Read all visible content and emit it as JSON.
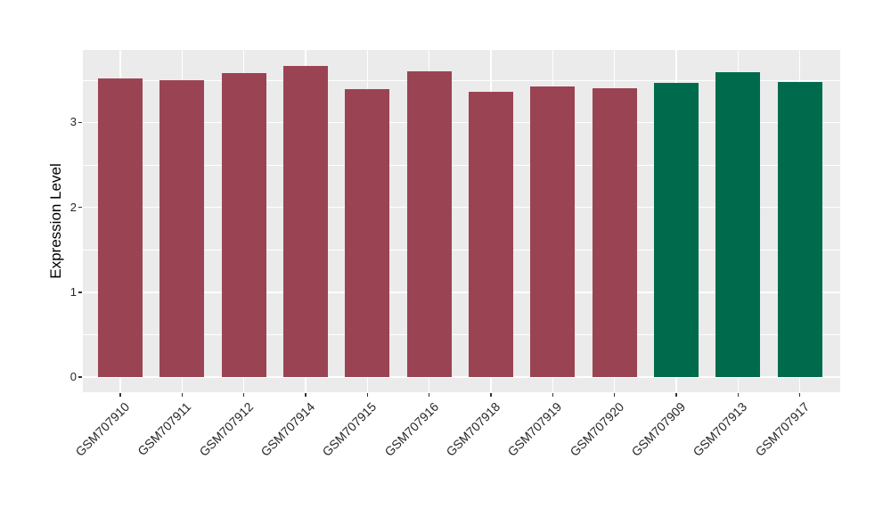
{
  "figure": {
    "background": "#FFFFFF",
    "panel_background": "#EBEBEB",
    "gridline_color": "#FFFFFF",
    "tick_color": "#333333",
    "axis_text_color": "#262626",
    "axis_title_color": "#000000"
  },
  "chart_data": {
    "type": "bar",
    "title": "",
    "xlabel": "",
    "ylabel": "Expression Level",
    "categories": [
      "GSM707910",
      "GSM707911",
      "GSM707912",
      "GSM707914",
      "GSM707915",
      "GSM707916",
      "GSM707918",
      "GSM707919",
      "GSM707920",
      "GSM707909",
      "GSM707913",
      "GSM707917"
    ],
    "values": [
      3.52,
      3.5,
      3.58,
      3.67,
      3.39,
      3.6,
      3.36,
      3.42,
      3.4,
      3.47,
      3.59,
      3.48
    ],
    "bar_colors": [
      "#9A4453",
      "#9A4453",
      "#9A4453",
      "#9A4453",
      "#9A4453",
      "#9A4453",
      "#9A4453",
      "#9A4453",
      "#9A4453",
      "#006B4C",
      "#006B4C",
      "#006B4C"
    ],
    "color_groups": {
      "left_group_color": "#9A4453",
      "right_group_color": "#006B4C"
    },
    "ylim": [
      -0.18,
      3.86
    ],
    "yticks": [
      0,
      1,
      2,
      3
    ],
    "yticks_minor": [
      0.5,
      1.5,
      2.5,
      3.5
    ],
    "ytick_labels": [
      "0",
      "1",
      "2",
      "3"
    ],
    "x_tick_rotation": -45,
    "grid": true,
    "legend_position": "none"
  }
}
